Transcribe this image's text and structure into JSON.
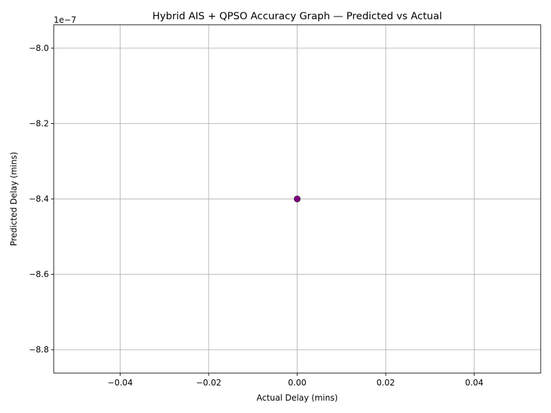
{
  "chart_data": {
    "type": "scatter",
    "title": "Hybrid AIS + QPSO Accuracy Graph — Predicted vs Actual",
    "xlabel": "Actual Delay (mins)",
    "ylabel": "Predicted Delay (mins)",
    "y_offset_text": "1e−7",
    "xlim": [
      -0.055,
      0.055
    ],
    "ylim": [
      -8.862,
      -7.938
    ],
    "x_ticks": [
      -0.04,
      -0.02,
      0.0,
      0.02,
      0.04
    ],
    "x_tick_labels": [
      "−0.04",
      "−0.02",
      "0.00",
      "0.02",
      "0.04"
    ],
    "y_ticks": [
      -8.8,
      -8.6,
      -8.4,
      -8.2,
      -8.0
    ],
    "y_tick_labels": [
      "−8.8",
      "−8.6",
      "−8.4",
      "−8.2",
      "−8.0"
    ],
    "grid": true,
    "point_color": "#800080",
    "points": [
      {
        "x": 0.0,
        "y": -8.4
      }
    ]
  }
}
